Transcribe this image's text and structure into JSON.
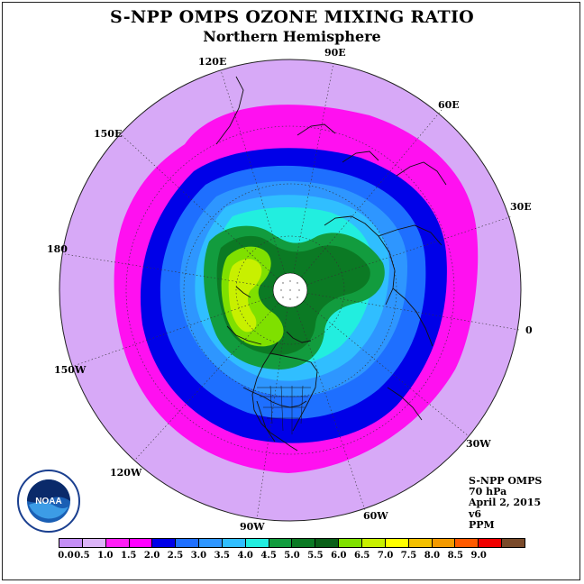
{
  "header": {
    "title": "S-NPP OMPS OZONE MIXING RATIO",
    "subtitle": "Northern Hemisphere"
  },
  "map": {
    "projection": "north-polar-stereographic",
    "center_pole_fill": "#ffffff",
    "ocean_outside_fill": "#ffffff",
    "outer_level_color": "#d7a9f7",
    "longitude_labels": [
      {
        "text": "90E"
      },
      {
        "text": "60E"
      },
      {
        "text": "30E"
      },
      {
        "text": "0"
      },
      {
        "text": "30W"
      },
      {
        "text": "60W"
      },
      {
        "text": "90W"
      },
      {
        "text": "120W"
      },
      {
        "text": "150W"
      },
      {
        "text": "180"
      },
      {
        "text": "150E"
      },
      {
        "text": "120E"
      }
    ]
  },
  "info": {
    "instrument": "S-NPP OMPS",
    "pressure": "70 hPa",
    "date": "April 2, 2015",
    "version": "v6",
    "units": "PPM"
  },
  "logo": {
    "icon": "noaa-logo-icon",
    "text": "NOAA"
  },
  "colorbar": {
    "colors": [
      "#c48ef5",
      "#dcb4f8",
      "#ff1ff5",
      "#ff00ff",
      "#0000e8",
      "#1e6fff",
      "#2e96ff",
      "#30beff",
      "#22eedf",
      "#129c3e",
      "#0b7a24",
      "#0a6018",
      "#7fe000",
      "#c8f000",
      "#ffff00",
      "#f4c000",
      "#f49a00",
      "#ff5a00",
      "#f00000",
      "#7a4a2a"
    ],
    "tick_labels": [
      "0.0",
      "0.5",
      "1.0",
      "1.5",
      "2.0",
      "2.5",
      "3.0",
      "3.5",
      "4.0",
      "4.5",
      "5.0",
      "5.5",
      "6.0",
      "6.5",
      "7.0",
      "7.5",
      "8.0",
      "8.5",
      "9.0"
    ]
  }
}
